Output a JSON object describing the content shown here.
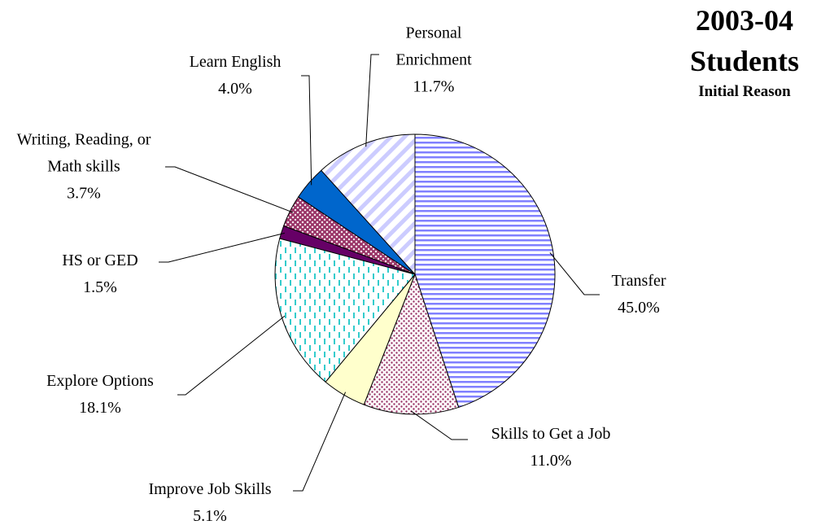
{
  "chart_data": {
    "type": "pie",
    "title": "2003-04 Students",
    "subtitle": "Initial Reason",
    "categories": [
      "Transfer",
      "Skills to Get a Job",
      "Improve Job Skills",
      "Explore Options",
      "HS or GED",
      "Writing, Reading, or Math skills",
      "Learn English",
      "Personal Enrichment"
    ],
    "values": [
      45.0,
      11.0,
      5.1,
      18.1,
      1.5,
      3.7,
      4.0,
      11.7
    ],
    "value_labels": [
      "45.0%",
      "11.0%",
      "5.1%",
      "18.1%",
      "1.5%",
      "3.7%",
      "4.0%",
      "11.7%"
    ],
    "colors": [
      "#8080ff",
      "#993366",
      "#ffffcc",
      "#33cccc",
      "#660066",
      "#993366",
      "#0066cc",
      "#ccccff"
    ]
  }
}
